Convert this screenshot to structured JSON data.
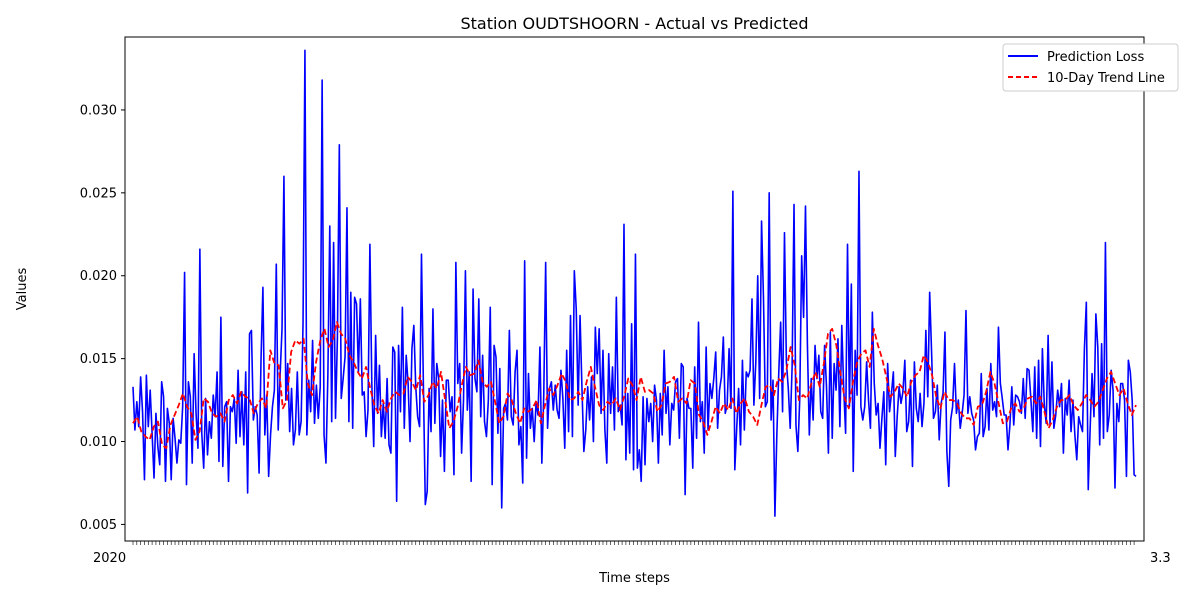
{
  "chart_data": {
    "type": "line",
    "title": "Station OUDTSHOORN - Actual vs Predicted",
    "xlabel": "Time steps",
    "ylabel": "Values",
    "ylim": [
      0.004,
      0.0344
    ],
    "y_ticks": [
      "0.005",
      "0.010",
      "0.015",
      "0.020",
      "0.025",
      "0.030"
    ],
    "grid": false,
    "legend_position": "top-right",
    "x_tick_labels_note": "dense overlapping date labels",
    "series": [
      {
        "name": "Prediction Loss",
        "color": "#0000ff",
        "style": "solid",
        "values": [
          0.0133,
          0.0107,
          0.0124,
          0.0109,
          0.0139,
          0.0118,
          0.0077,
          0.014,
          0.0109,
          0.0131,
          0.0105,
          0.0078,
          0.0117,
          0.0097,
          0.0086,
          0.0136,
          0.0127,
          0.0076,
          0.012,
          0.0111,
          0.0077,
          0.0114,
          0.0102,
          0.0087,
          0.0101,
          0.0099,
          0.0121,
          0.0202,
          0.0074,
          0.0136,
          0.0127,
          0.0087,
          0.0153,
          0.0117,
          0.0096,
          0.0216,
          0.0105,
          0.0084,
          0.0126,
          0.0092,
          0.0112,
          0.0102,
          0.0128,
          0.0115,
          0.0142,
          0.0088,
          0.0175,
          0.0085,
          0.0121,
          0.0124,
          0.0076,
          0.0121,
          0.0118,
          0.0126,
          0.0099,
          0.0143,
          0.0103,
          0.013,
          0.0098,
          0.0142,
          0.0069,
          0.0165,
          0.0167,
          0.0113,
          0.0121,
          0.0116,
          0.0081,
          0.0149,
          0.0193,
          0.0104,
          0.0128,
          0.0079,
          0.0104,
          0.0121,
          0.0131,
          0.0207,
          0.0107,
          0.014,
          0.0168,
          0.026,
          0.0125,
          0.0147,
          0.0106,
          0.0132,
          0.0098,
          0.0107,
          0.0142,
          0.0104,
          0.0112,
          0.0171,
          0.0336,
          0.0104,
          0.0137,
          0.0118,
          0.0161,
          0.0111,
          0.0134,
          0.0114,
          0.0133,
          0.0318,
          0.0104,
          0.0087,
          0.014,
          0.023,
          0.0112,
          0.022,
          0.0114,
          0.0163,
          0.0279,
          0.0126,
          0.0138,
          0.0151,
          0.0241,
          0.0112,
          0.019,
          0.0108,
          0.0187,
          0.0183,
          0.0142,
          0.0186,
          0.0128,
          0.013,
          0.0103,
          0.0119,
          0.0219,
          0.0135,
          0.0097,
          0.0164,
          0.0117,
          0.0146,
          0.0103,
          0.0123,
          0.0102,
          0.0138,
          0.0098,
          0.0093,
          0.0157,
          0.0154,
          0.0064,
          0.0158,
          0.0118,
          0.0181,
          0.0108,
          0.0152,
          0.0135,
          0.01,
          0.0156,
          0.017,
          0.0133,
          0.0115,
          0.0109,
          0.0213,
          0.0134,
          0.0062,
          0.007,
          0.0132,
          0.0106,
          0.018,
          0.0111,
          0.0147,
          0.0138,
          0.0091,
          0.0125,
          0.0082,
          0.0137,
          0.0137,
          0.0118,
          0.0127,
          0.008,
          0.0208,
          0.0135,
          0.0147,
          0.0093,
          0.0125,
          0.0203,
          0.0119,
          0.0142,
          0.0076,
          0.0192,
          0.0138,
          0.013,
          0.0186,
          0.0115,
          0.0152,
          0.0112,
          0.0103,
          0.0125,
          0.0181,
          0.0074,
          0.0158,
          0.0151,
          0.0105,
          0.0144,
          0.006,
          0.012,
          0.0123,
          0.0113,
          0.0167,
          0.0115,
          0.011,
          0.0142,
          0.0155,
          0.0098,
          0.0109,
          0.0075,
          0.0209,
          0.009,
          0.0141,
          0.0108,
          0.012,
          0.01,
          0.0124,
          0.0116,
          0.0157,
          0.0087,
          0.0128,
          0.0208,
          0.0108,
          0.0132,
          0.0136,
          0.0119,
          0.0134,
          0.0119,
          0.0114,
          0.0143,
          0.0126,
          0.0096,
          0.0155,
          0.0106,
          0.0176,
          0.0103,
          0.0203,
          0.018,
          0.0122,
          0.0176,
          0.0132,
          0.0094,
          0.0107,
          0.0133,
          0.0113,
          0.0139,
          0.01,
          0.0169,
          0.0141,
          0.0168,
          0.0117,
          0.0155,
          0.0107,
          0.0087,
          0.0153,
          0.0117,
          0.0145,
          0.0107,
          0.0187,
          0.0118,
          0.0122,
          0.011,
          0.0231,
          0.0089,
          0.0129,
          0.0093,
          0.0171,
          0.0083,
          0.0213,
          0.0084,
          0.0095,
          0.0076,
          0.0127,
          0.0086,
          0.0126,
          0.0112,
          0.0123,
          0.01,
          0.0134,
          0.0125,
          0.0087,
          0.0129,
          0.0104,
          0.0155,
          0.0117,
          0.0133,
          0.0098,
          0.0123,
          0.0119,
          0.0136,
          0.0138,
          0.0102,
          0.0147,
          0.0145,
          0.0068,
          0.0126,
          0.012,
          0.012,
          0.0084,
          0.0145,
          0.0102,
          0.0172,
          0.0112,
          0.0124,
          0.0093,
          0.0157,
          0.0107,
          0.0135,
          0.0126,
          0.0138,
          0.0154,
          0.0108,
          0.0131,
          0.0139,
          0.0163,
          0.0117,
          0.0122,
          0.0156,
          0.012,
          0.0251,
          0.0083,
          0.0108,
          0.0132,
          0.0098,
          0.0149,
          0.0107,
          0.0142,
          0.0139,
          0.0143,
          0.0186,
          0.0122,
          0.0148,
          0.02,
          0.0126,
          0.0233,
          0.0187,
          0.0121,
          0.0124,
          0.025,
          0.0113,
          0.0137,
          0.0055,
          0.0104,
          0.0141,
          0.0172,
          0.0118,
          0.0226,
          0.0148,
          0.0132,
          0.0108,
          0.0145,
          0.0243,
          0.011,
          0.0094,
          0.0126,
          0.0212,
          0.0175,
          0.0242,
          0.0159,
          0.0104,
          0.0138,
          0.0113,
          0.0158,
          0.0138,
          0.0152,
          0.0118,
          0.0114,
          0.0158,
          0.0133,
          0.0093,
          0.0166,
          0.0102,
          0.0147,
          0.0131,
          0.0162,
          0.0109,
          0.017,
          0.0132,
          0.0105,
          0.0219,
          0.0121,
          0.0195,
          0.0082,
          0.0155,
          0.0128,
          0.0263,
          0.0121,
          0.0113,
          0.0121,
          0.0148,
          0.0125,
          0.0108,
          0.0178,
          0.0135,
          0.0116,
          0.0123,
          0.0096,
          0.0114,
          0.013,
          0.0086,
          0.0147,
          0.0118,
          0.0129,
          0.0142,
          0.0091,
          0.0115,
          0.0133,
          0.0123,
          0.013,
          0.0149,
          0.0106,
          0.0112,
          0.0137,
          0.0085,
          0.0148,
          0.012,
          0.0112,
          0.0129,
          0.0109,
          0.0123,
          0.0167,
          0.0127,
          0.019,
          0.0154,
          0.0114,
          0.0118,
          0.0134,
          0.0101,
          0.0123,
          0.0129,
          0.0166,
          0.0094,
          0.0073,
          0.0113,
          0.0121,
          0.0147,
          0.0117,
          0.0125,
          0.0108,
          0.0117,
          0.0128,
          0.0179,
          0.0117,
          0.0127,
          0.0117,
          0.0113,
          0.0095,
          0.0103,
          0.0105,
          0.0141,
          0.0103,
          0.0109,
          0.0132,
          0.0107,
          0.0147,
          0.0119,
          0.0124,
          0.0115,
          0.0169,
          0.0135,
          0.0126,
          0.0116,
          0.0116,
          0.0095,
          0.011,
          0.0133,
          0.011,
          0.0128,
          0.0127,
          0.0124,
          0.0117,
          0.0138,
          0.0114,
          0.0144,
          0.0143,
          0.0125,
          0.0106,
          0.0145,
          0.0102,
          0.0149,
          0.0097,
          0.0156,
          0.0122,
          0.0111,
          0.0164,
          0.011,
          0.0148,
          0.0108,
          0.0116,
          0.0131,
          0.0121,
          0.0135,
          0.0093,
          0.0126,
          0.0116,
          0.0137,
          0.0106,
          0.0125,
          0.0104,
          0.0089,
          0.0115,
          0.011,
          0.0106,
          0.0156,
          0.0184,
          0.0071,
          0.0108,
          0.0141,
          0.0115,
          0.0177,
          0.0157,
          0.0098,
          0.0159,
          0.0102,
          0.022,
          0.0106,
          0.0116,
          0.0143,
          0.0131,
          0.0072,
          0.0123,
          0.0112,
          0.0135,
          0.0135,
          0.0125,
          0.0079,
          0.0149,
          0.0142,
          0.0125,
          0.008,
          0.0079
        ]
      },
      {
        "name": "10-Day Trend Line",
        "color": "#ff0000",
        "style": "dashed",
        "values": [
          0.0111,
          0.0115,
          0.0106,
          0.0103,
          0.0101,
          0.0109,
          0.0112,
          0.0098,
          0.0096,
          0.011,
          0.0116,
          0.0122,
          0.0129,
          0.0121,
          0.0117,
          0.0101,
          0.0106,
          0.0126,
          0.0124,
          0.0117,
          0.0115,
          0.0117,
          0.0112,
          0.0125,
          0.0128,
          0.0123,
          0.013,
          0.0127,
          0.0126,
          0.0117,
          0.0123,
          0.0126,
          0.012,
          0.0155,
          0.0147,
          0.0146,
          0.012,
          0.0125,
          0.0154,
          0.0161,
          0.0159,
          0.0162,
          0.0135,
          0.0128,
          0.0148,
          0.0161,
          0.0168,
          0.0157,
          0.0161,
          0.0172,
          0.0165,
          0.0162,
          0.0152,
          0.0148,
          0.0142,
          0.0138,
          0.0145,
          0.0132,
          0.0122,
          0.0117,
          0.0125,
          0.0118,
          0.0126,
          0.013,
          0.0128,
          0.0129,
          0.0139,
          0.0136,
          0.0131,
          0.014,
          0.0124,
          0.0128,
          0.0136,
          0.0132,
          0.0142,
          0.0125,
          0.0108,
          0.0112,
          0.0121,
          0.0134,
          0.0145,
          0.014,
          0.0141,
          0.0149,
          0.0136,
          0.0133,
          0.0136,
          0.0124,
          0.0111,
          0.0115,
          0.0129,
          0.0125,
          0.0117,
          0.0111,
          0.012,
          0.0118,
          0.012,
          0.0125,
          0.0111,
          0.0122,
          0.0132,
          0.0128,
          0.0134,
          0.0141,
          0.0136,
          0.0125,
          0.0126,
          0.013,
          0.0125,
          0.0136,
          0.0145,
          0.0133,
          0.0122,
          0.0119,
          0.0124,
          0.0122,
          0.0126,
          0.0119,
          0.0127,
          0.0138,
          0.0134,
          0.0125,
          0.0139,
          0.013,
          0.0131,
          0.0129,
          0.0118,
          0.0122,
          0.0135,
          0.0136,
          0.0139,
          0.0124,
          0.0126,
          0.0123,
          0.0137,
          0.0135,
          0.0116,
          0.0112,
          0.0104,
          0.0112,
          0.0121,
          0.0117,
          0.0123,
          0.0119,
          0.0126,
          0.0117,
          0.0123,
          0.0126,
          0.0118,
          0.0115,
          0.011,
          0.0122,
          0.0133,
          0.0134,
          0.0128,
          0.0138,
          0.0136,
          0.0143,
          0.0157,
          0.0146,
          0.0125,
          0.0128,
          0.0126,
          0.0135,
          0.0142,
          0.0133,
          0.0147,
          0.0165,
          0.0168,
          0.0158,
          0.0141,
          0.0126,
          0.012,
          0.0136,
          0.0148,
          0.0153,
          0.0155,
          0.0145,
          0.0168,
          0.0158,
          0.015,
          0.0139,
          0.0127,
          0.013,
          0.0135,
          0.0132,
          0.0127,
          0.0136,
          0.014,
          0.0142,
          0.0152,
          0.0148,
          0.014,
          0.0127,
          0.012,
          0.013,
          0.0125,
          0.0125,
          0.0123,
          0.0117,
          0.0114,
          0.0114,
          0.011,
          0.0121,
          0.0122,
          0.013,
          0.0142,
          0.0135,
          0.0123,
          0.0111,
          0.0112,
          0.012,
          0.0123,
          0.0118,
          0.012,
          0.0126,
          0.0127,
          0.0123,
          0.0127,
          0.0118,
          0.0108,
          0.0113,
          0.0121,
          0.0125,
          0.0125,
          0.0128,
          0.0122,
          0.0119,
          0.0123,
          0.0128,
          0.0125,
          0.0121,
          0.0124,
          0.0131,
          0.0138,
          0.0142,
          0.0135,
          0.0128,
          0.0132,
          0.0123,
          0.0116,
          0.0122
        ]
      }
    ]
  },
  "x_tick_labels": {
    "left": "2020",
    "right": "3.3"
  }
}
